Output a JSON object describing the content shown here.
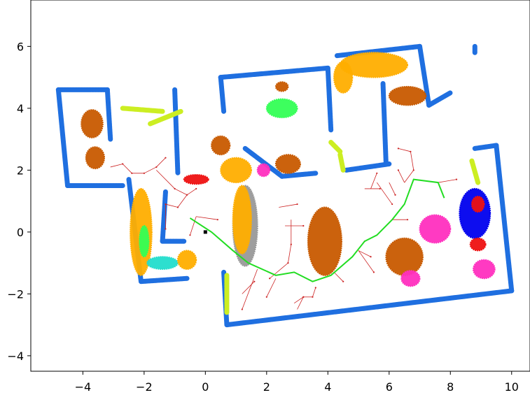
{
  "chart_data": {
    "type": "scatter",
    "title": "",
    "xlabel": "",
    "ylabel": "",
    "xlim": [
      -5.7,
      10.6
    ],
    "ylim": [
      -4.5,
      7.5
    ],
    "xticks": [
      -4,
      -2,
      0,
      2,
      4,
      6,
      8,
      10
    ],
    "yticks": [
      -4,
      -2,
      0,
      2,
      4,
      6
    ],
    "xtick_labels": [
      "−4",
      "−2",
      "0",
      "2",
      "4",
      "6",
      "8",
      "10"
    ],
    "ytick_labels": [
      "−4",
      "−2",
      "0",
      "2",
      "4",
      "6"
    ],
    "grid": false,
    "legend": "none",
    "colors": {
      "wall": "#1f6fe0",
      "wall_alt": "#ccee22",
      "furniture_brown": "#c85a00",
      "furniture_orange": "#ffae00",
      "furniture_magenta": "#ff2fbf",
      "furniture_blue": "#0000ee",
      "furniture_green": "#33ff55",
      "furniture_cyan": "#22ddcc",
      "furniture_gray": "#999999",
      "furniture_red": "#ee1111",
      "path": "#22dd22",
      "tree": "#cc2222",
      "start": "#000000"
    },
    "walls": [
      {
        "color": "wall",
        "points": [
          [
            -4.8,
            4.6
          ],
          [
            -3.2,
            4.6
          ]
        ]
      },
      {
        "color": "wall",
        "points": [
          [
            -4.8,
            4.6
          ],
          [
            -4.5,
            1.5
          ]
        ]
      },
      {
        "color": "wall",
        "points": [
          [
            -4.5,
            1.5
          ],
          [
            -2.7,
            1.5
          ]
        ]
      },
      {
        "color": "wall",
        "points": [
          [
            -2.5,
            1.7
          ],
          [
            -2.1,
            -1.6
          ]
        ]
      },
      {
        "color": "wall",
        "points": [
          [
            -2.1,
            -1.6
          ],
          [
            -0.6,
            -1.5
          ]
        ]
      },
      {
        "color": "wall",
        "points": [
          [
            -1.4,
            -0.3
          ],
          [
            -0.7,
            -0.3
          ]
        ]
      },
      {
        "color": "wall",
        "points": [
          [
            -1.4,
            -0.3
          ],
          [
            -1.3,
            1.3
          ]
        ]
      },
      {
        "color": "wall",
        "points": [
          [
            -3.2,
            4.6
          ],
          [
            -3.1,
            3.0
          ]
        ]
      },
      {
        "color": "wall",
        "points": [
          [
            -1.0,
            4.6
          ],
          [
            -0.9,
            1.9
          ]
        ]
      },
      {
        "color": "wall",
        "points": [
          [
            0.5,
            5.0
          ],
          [
            4.0,
            5.3
          ]
        ]
      },
      {
        "color": "wall",
        "points": [
          [
            0.5,
            5.0
          ],
          [
            0.6,
            3.9
          ]
        ]
      },
      {
        "color": "wall",
        "points": [
          [
            4.0,
            5.3
          ],
          [
            4.1,
            3.3
          ]
        ]
      },
      {
        "color": "wall",
        "points": [
          [
            4.3,
            5.7
          ],
          [
            7.0,
            6.0
          ]
        ]
      },
      {
        "color": "wall",
        "points": [
          [
            5.8,
            4.8
          ],
          [
            5.9,
            2.2
          ]
        ]
      },
      {
        "color": "wall",
        "points": [
          [
            7.0,
            6.0
          ],
          [
            7.3,
            4.1
          ]
        ]
      },
      {
        "color": "wall",
        "points": [
          [
            7.3,
            4.1
          ],
          [
            8.0,
            4.5
          ]
        ]
      },
      {
        "color": "wall",
        "points": [
          [
            8.8,
            2.7
          ],
          [
            9.5,
            2.8
          ]
        ]
      },
      {
        "color": "wall",
        "points": [
          [
            9.5,
            2.8
          ],
          [
            10.0,
            -1.9
          ]
        ]
      },
      {
        "color": "wall",
        "points": [
          [
            0.7,
            -3.0
          ],
          [
            10.0,
            -1.9
          ]
        ]
      },
      {
        "color": "wall",
        "points": [
          [
            0.6,
            -1.3
          ],
          [
            0.7,
            -3.0
          ]
        ]
      },
      {
        "color": "wall",
        "points": [
          [
            1.3,
            2.7
          ],
          [
            2.5,
            1.8
          ]
        ]
      },
      {
        "color": "wall",
        "points": [
          [
            2.5,
            1.8
          ],
          [
            3.6,
            1.9
          ]
        ]
      },
      {
        "color": "wall",
        "points": [
          [
            4.6,
            2.0
          ],
          [
            6.0,
            2.2
          ]
        ]
      },
      {
        "color": "wall",
        "points": [
          [
            8.8,
            5.8
          ],
          [
            8.8,
            6.0
          ]
        ]
      },
      {
        "color": "wall_alt",
        "points": [
          [
            -2.7,
            4.0
          ],
          [
            -1.4,
            3.9
          ]
        ]
      },
      {
        "color": "wall_alt",
        "points": [
          [
            -1.8,
            3.5
          ],
          [
            -0.8,
            3.9
          ]
        ]
      },
      {
        "color": "wall_alt",
        "points": [
          [
            4.1,
            2.9
          ],
          [
            4.4,
            2.6
          ]
        ]
      },
      {
        "color": "wall_alt",
        "points": [
          [
            4.4,
            2.5
          ],
          [
            4.5,
            2.0
          ]
        ]
      },
      {
        "color": "wall_alt",
        "points": [
          [
            8.7,
            2.3
          ],
          [
            8.9,
            1.6
          ]
        ]
      },
      {
        "color": "wall_alt",
        "points": [
          [
            0.7,
            -2.6
          ],
          [
            0.7,
            -1.4
          ]
        ]
      }
    ],
    "blobs": [
      {
        "color": "furniture_brown",
        "x": -3.7,
        "y": 3.5,
        "rx": 0.35,
        "ry": 0.45
      },
      {
        "color": "furniture_brown",
        "x": -3.6,
        "y": 2.4,
        "rx": 0.3,
        "ry": 0.35
      },
      {
        "color": "furniture_brown",
        "x": 2.5,
        "y": 4.7,
        "rx": 0.2,
        "ry": 0.15
      },
      {
        "color": "furniture_green",
        "x": 2.5,
        "y": 4.0,
        "rx": 0.5,
        "ry": 0.3
      },
      {
        "color": "furniture_brown",
        "x": 0.5,
        "y": 2.8,
        "rx": 0.3,
        "ry": 0.3
      },
      {
        "color": "furniture_orange",
        "x": 1.0,
        "y": 2.0,
        "rx": 0.5,
        "ry": 0.4
      },
      {
        "color": "furniture_gray",
        "x": 1.3,
        "y": 0.2,
        "rx": 0.4,
        "ry": 1.3
      },
      {
        "color": "furniture_orange",
        "x": 1.2,
        "y": 0.4,
        "rx": 0.3,
        "ry": 1.1
      },
      {
        "color": "furniture_red",
        "x": -0.3,
        "y": 1.7,
        "rx": 0.4,
        "ry": 0.15
      },
      {
        "color": "furniture_magenta",
        "x": 1.9,
        "y": 2.0,
        "rx": 0.2,
        "ry": 0.2
      },
      {
        "color": "furniture_brown",
        "x": 2.7,
        "y": 2.2,
        "rx": 0.4,
        "ry": 0.3
      },
      {
        "color": "furniture_brown",
        "x": 3.9,
        "y": -0.3,
        "rx": 0.55,
        "ry": 1.1
      },
      {
        "color": "furniture_orange",
        "x": 5.5,
        "y": 5.4,
        "rx": 1.1,
        "ry": 0.4
      },
      {
        "color": "furniture_orange",
        "x": 4.5,
        "y": 5.0,
        "rx": 0.3,
        "ry": 0.5
      },
      {
        "color": "furniture_brown",
        "x": 6.6,
        "y": 4.4,
        "rx": 0.6,
        "ry": 0.3
      },
      {
        "color": "furniture_brown",
        "x": 6.5,
        "y": -0.8,
        "rx": 0.6,
        "ry": 0.6
      },
      {
        "color": "furniture_magenta",
        "x": 6.7,
        "y": -1.5,
        "rx": 0.3,
        "ry": 0.25
      },
      {
        "color": "furniture_magenta",
        "x": 7.5,
        "y": 0.1,
        "rx": 0.5,
        "ry": 0.45
      },
      {
        "color": "furniture_blue",
        "x": 8.8,
        "y": 0.6,
        "rx": 0.5,
        "ry": 0.8
      },
      {
        "color": "furniture_red",
        "x": 8.9,
        "y": -0.4,
        "rx": 0.25,
        "ry": 0.2
      },
      {
        "color": "furniture_red",
        "x": 8.9,
        "y": 0.9,
        "rx": 0.2,
        "ry": 0.25
      },
      {
        "color": "furniture_magenta",
        "x": 9.1,
        "y": -1.2,
        "rx": 0.35,
        "ry": 0.3
      },
      {
        "color": "furniture_orange",
        "x": -2.1,
        "y": 0.0,
        "rx": 0.35,
        "ry": 1.4
      },
      {
        "color": "furniture_cyan",
        "x": -1.4,
        "y": -1.0,
        "rx": 0.5,
        "ry": 0.2
      },
      {
        "color": "furniture_orange",
        "x": -0.6,
        "y": -0.9,
        "rx": 0.3,
        "ry": 0.3
      },
      {
        "color": "furniture_green",
        "x": -2.0,
        "y": -0.3,
        "rx": 0.15,
        "ry": 0.5
      }
    ],
    "path": {
      "color": "path",
      "points": [
        [
          -0.5,
          0.45
        ],
        [
          0.2,
          0.0
        ],
        [
          0.9,
          -0.6
        ],
        [
          1.4,
          -1.0
        ],
        [
          2.3,
          -1.4
        ],
        [
          2.9,
          -1.3
        ],
        [
          3.5,
          -1.6
        ],
        [
          4.1,
          -1.4
        ],
        [
          4.8,
          -0.8
        ],
        [
          5.2,
          -0.3
        ],
        [
          5.6,
          -0.1
        ],
        [
          6.1,
          0.4
        ],
        [
          6.5,
          0.9
        ],
        [
          6.8,
          1.7
        ],
        [
          7.6,
          1.6
        ],
        [
          7.8,
          1.1
        ]
      ]
    },
    "tree_edges": [
      [
        [
          -3.1,
          2.1
        ],
        [
          -2.7,
          2.2
        ]
      ],
      [
        [
          -2.7,
          2.2
        ],
        [
          -2.4,
          1.9
        ]
      ],
      [
        [
          -2.4,
          1.9
        ],
        [
          -2.0,
          1.9
        ]
      ],
      [
        [
          -2.0,
          1.9
        ],
        [
          -1.6,
          2.1
        ]
      ],
      [
        [
          -1.6,
          2.1
        ],
        [
          -1.3,
          2.4
        ]
      ],
      [
        [
          -1.6,
          2.0
        ],
        [
          -1.0,
          1.4
        ]
      ],
      [
        [
          -1.0,
          1.4
        ],
        [
          -0.6,
          1.2
        ]
      ],
      [
        [
          -0.6,
          1.2
        ],
        [
          -0.3,
          1.4
        ]
      ],
      [
        [
          -0.6,
          1.2
        ],
        [
          -0.9,
          0.8
        ]
      ],
      [
        [
          -0.9,
          0.8
        ],
        [
          -1.3,
          0.9
        ]
      ],
      [
        [
          -1.3,
          0.9
        ],
        [
          -1.3,
          0.1
        ]
      ],
      [
        [
          -0.3,
          0.5
        ],
        [
          -0.5,
          -0.1
        ]
      ],
      [
        [
          -0.3,
          0.5
        ],
        [
          0.4,
          0.4
        ]
      ],
      [
        [
          2.4,
          0.8
        ],
        [
          3.0,
          0.9
        ]
      ],
      [
        [
          2.8,
          0.4
        ],
        [
          2.8,
          -0.4
        ]
      ],
      [
        [
          2.6,
          0.2
        ],
        [
          3.2,
          0.2
        ]
      ],
      [
        [
          2.8,
          -0.4
        ],
        [
          2.7,
          -1.0
        ]
      ],
      [
        [
          2.7,
          -1.0
        ],
        [
          2.1,
          -1.5
        ]
      ],
      [
        [
          2.3,
          -1.5
        ],
        [
          2.0,
          -2.1
        ]
      ],
      [
        [
          1.7,
          -1.2
        ],
        [
          1.2,
          -2.5
        ]
      ],
      [
        [
          1.2,
          -2.0
        ],
        [
          1.6,
          -1.6
        ]
      ],
      [
        [
          2.9,
          -2.3
        ],
        [
          3.2,
          -2.1
        ]
      ],
      [
        [
          3.2,
          -2.1
        ],
        [
          3.5,
          -2.1
        ]
      ],
      [
        [
          3.5,
          -2.1
        ],
        [
          3.6,
          -1.8
        ]
      ],
      [
        [
          3.0,
          -2.5
        ],
        [
          3.2,
          -2.1
        ]
      ],
      [
        [
          4.2,
          -1.3
        ],
        [
          4.5,
          -1.6
        ]
      ],
      [
        [
          5.0,
          -0.6
        ],
        [
          5.4,
          -0.8
        ]
      ],
      [
        [
          5.0,
          -0.6
        ],
        [
          5.5,
          -1.3
        ]
      ],
      [
        [
          5.2,
          1.4
        ],
        [
          5.7,
          1.4
        ]
      ],
      [
        [
          5.4,
          1.4
        ],
        [
          5.6,
          1.9
        ]
      ],
      [
        [
          5.6,
          1.6
        ],
        [
          6.1,
          0.9
        ]
      ],
      [
        [
          6.0,
          1.6
        ],
        [
          6.2,
          1.2
        ]
      ],
      [
        [
          6.5,
          1.6
        ],
        [
          6.3,
          2.0
        ]
      ],
      [
        [
          6.5,
          1.6
        ],
        [
          6.8,
          2.0
        ]
      ],
      [
        [
          6.8,
          2.0
        ],
        [
          6.7,
          2.6
        ]
      ],
      [
        [
          6.7,
          2.6
        ],
        [
          6.3,
          2.7
        ]
      ],
      [
        [
          7.6,
          1.6
        ],
        [
          8.2,
          1.7
        ]
      ],
      [
        [
          6.1,
          0.4
        ],
        [
          6.6,
          0.4
        ]
      ],
      [
        [
          5.6,
          -0.1
        ],
        [
          5.2,
          -0.3
        ]
      ]
    ],
    "start_point": [
      0.0,
      0.0
    ]
  }
}
